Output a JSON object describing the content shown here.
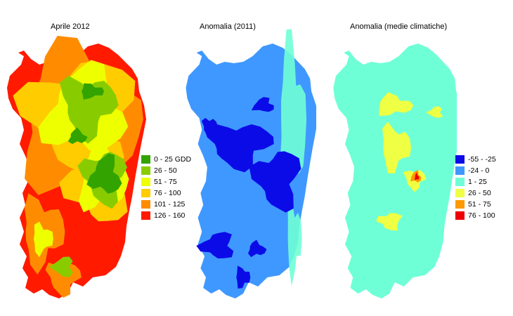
{
  "panels": [
    {
      "title": "Aprile 2012",
      "base_color": "#ff1a00",
      "zones": [
        {
          "color": "#ff8c00"
        },
        {
          "color": "#ffcc00"
        },
        {
          "color": "#eeff00"
        },
        {
          "color": "#88cc00"
        },
        {
          "color": "#33a300"
        }
      ]
    },
    {
      "title": "Anomalia (2011)",
      "base_color": "#3f98ff",
      "zones": [
        {
          "color": "#0b0be8"
        },
        {
          "color": "#6fffd6"
        }
      ]
    },
    {
      "title": "Anomalia (medie climatiche)",
      "base_color": "#6fffd6",
      "zones": [
        {
          "color": "#eeff44"
        },
        {
          "color": "#ff9900"
        },
        {
          "color": "#ee0000"
        }
      ]
    }
  ],
  "legend_gdd": [
    {
      "label": "0 - 25 GDD",
      "color": "#33a300"
    },
    {
      "label": "26 - 50",
      "color": "#88cc00"
    },
    {
      "label": "51 - 75",
      "color": "#eeff00"
    },
    {
      "label": "76 - 100",
      "color": "#ffcc00"
    },
    {
      "label": "101 - 125",
      "color": "#ff8c00"
    },
    {
      "label": "126 - 160",
      "color": "#ff1a00"
    }
  ],
  "legend_anomaly": [
    {
      "label": "-55 - -25",
      "color": "#0b0be8"
    },
    {
      "label": "-24 - 0",
      "color": "#3f98ff"
    },
    {
      "label": "1 - 25",
      "color": "#6fffd6"
    },
    {
      "label": "26 - 50",
      "color": "#eeff44"
    },
    {
      "label": "51 - 75",
      "color": "#ff9900"
    },
    {
      "label": "76 - 100",
      "color": "#ee0000"
    }
  ]
}
